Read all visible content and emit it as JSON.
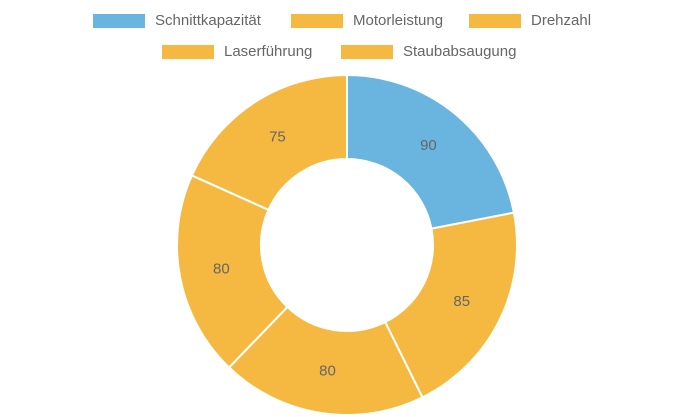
{
  "chart_data": {
    "type": "doughnut",
    "categories": [
      "Schnittkapazität",
      "Motorleistung",
      "Drehzahl",
      "Laserführung",
      "Staubabsaugung"
    ],
    "values": [
      90,
      85,
      80,
      80,
      75
    ],
    "colors": [
      "#6ab4e0",
      "#f5b942",
      "#f5b942",
      "#f5b942",
      "#f5b942"
    ],
    "legend": "top"
  }
}
